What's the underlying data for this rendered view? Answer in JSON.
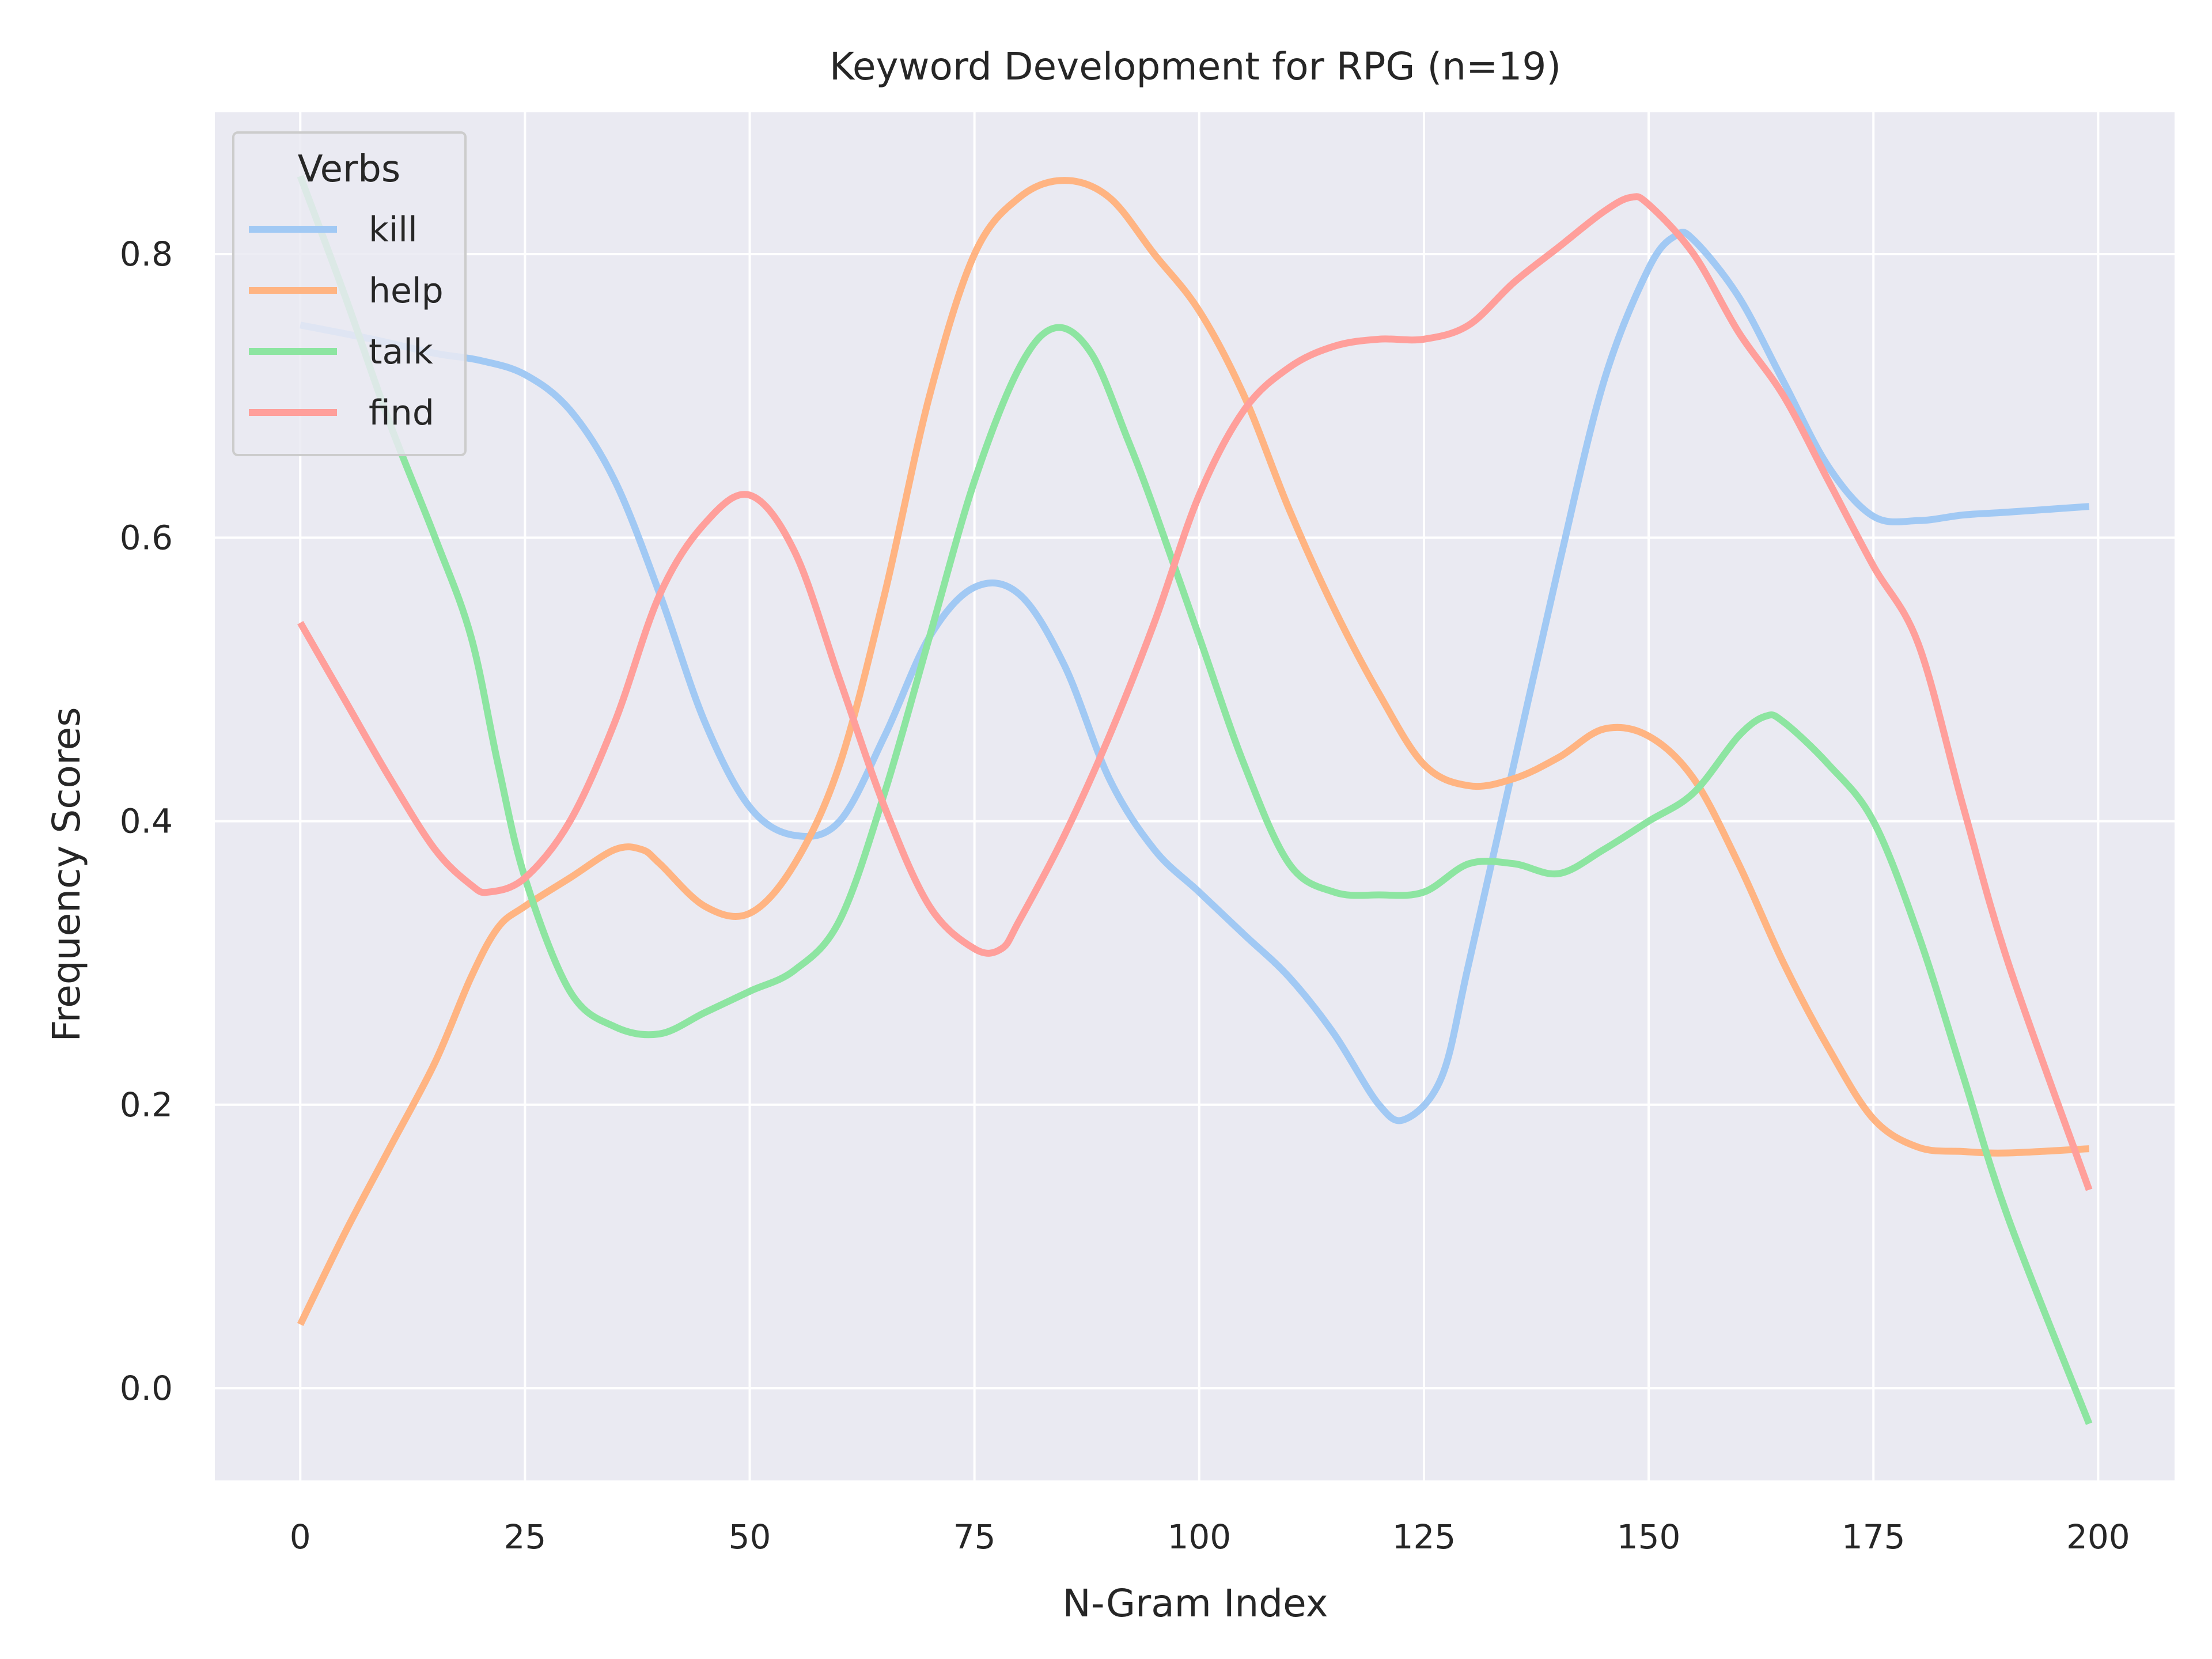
{
  "chart_data": {
    "type": "line",
    "title": "Keyword Development for RPG (n=19)",
    "xlabel": "N-Gram Index",
    "ylabel": "Frequency Scores",
    "xlim": [
      -9.5,
      208.5
    ],
    "ylim": [
      -0.065,
      0.9
    ],
    "xticks": [
      0,
      25,
      50,
      75,
      100,
      125,
      150,
      175,
      200
    ],
    "yticks": [
      0.0,
      0.2,
      0.4,
      0.6,
      0.8
    ],
    "xtick_labels": [
      "0",
      "25",
      "50",
      "75",
      "100",
      "125",
      "150",
      "175",
      "200"
    ],
    "ytick_labels": [
      "0.0",
      "0.2",
      "0.4",
      "0.6",
      "0.8"
    ],
    "grid": true,
    "legend": {
      "title": "Verbs",
      "placement": "top-left"
    },
    "series": [
      {
        "name": "kill",
        "color": "#a1c9f4",
        "x": [
          0,
          8,
          15,
          20,
          25,
          30,
          35,
          40,
          45,
          50,
          55,
          60,
          65,
          70,
          75,
          80,
          85,
          90,
          95,
          100,
          105,
          110,
          115,
          120,
          123,
          127,
          130,
          135,
          140,
          145,
          150,
          153,
          155,
          160,
          165,
          170,
          175,
          180,
          185,
          190,
          199
        ],
        "y": [
          0.75,
          0.74,
          0.73,
          0.725,
          0.715,
          0.69,
          0.64,
          0.56,
          0.47,
          0.41,
          0.39,
          0.4,
          0.46,
          0.53,
          0.565,
          0.56,
          0.51,
          0.43,
          0.38,
          0.35,
          0.32,
          0.29,
          0.25,
          0.2,
          0.19,
          0.22,
          0.3,
          0.44,
          0.58,
          0.71,
          0.79,
          0.813,
          0.81,
          0.77,
          0.71,
          0.65,
          0.615,
          0.612,
          0.616,
          0.618,
          0.622
        ]
      },
      {
        "name": "help",
        "color": "#ffb482",
        "x": [
          0,
          5,
          10,
          15,
          19,
          22,
          25,
          30,
          35,
          38,
          40,
          45,
          50,
          55,
          60,
          65,
          70,
          75,
          80,
          85,
          90,
          95,
          100,
          105,
          110,
          115,
          120,
          125,
          130,
          135,
          140,
          145,
          150,
          155,
          160,
          165,
          170,
          175,
          180,
          185,
          190,
          199
        ],
        "y": [
          0.045,
          0.11,
          0.17,
          0.23,
          0.29,
          0.325,
          0.34,
          0.36,
          0.38,
          0.38,
          0.37,
          0.34,
          0.335,
          0.37,
          0.44,
          0.56,
          0.7,
          0.8,
          0.84,
          0.852,
          0.84,
          0.8,
          0.76,
          0.7,
          0.62,
          0.55,
          0.49,
          0.44,
          0.425,
          0.43,
          0.445,
          0.465,
          0.46,
          0.43,
          0.37,
          0.3,
          0.24,
          0.19,
          0.17,
          0.167,
          0.166,
          0.169
        ]
      },
      {
        "name": "talk",
        "color": "#8de5a1",
        "x": [
          0,
          5,
          10,
          15,
          19,
          22,
          25,
          30,
          35,
          40,
          45,
          50,
          55,
          60,
          65,
          70,
          75,
          80,
          84,
          88,
          92,
          95,
          100,
          105,
          110,
          115,
          120,
          125,
          130,
          135,
          140,
          145,
          150,
          155,
          160,
          163,
          165,
          170,
          175,
          180,
          185,
          190,
          199
        ],
        "y": [
          0.855,
          0.77,
          0.68,
          0.6,
          0.53,
          0.44,
          0.36,
          0.28,
          0.255,
          0.25,
          0.265,
          0.28,
          0.295,
          0.33,
          0.42,
          0.53,
          0.64,
          0.72,
          0.748,
          0.73,
          0.67,
          0.62,
          0.53,
          0.44,
          0.37,
          0.35,
          0.348,
          0.35,
          0.37,
          0.37,
          0.363,
          0.38,
          0.4,
          0.42,
          0.46,
          0.474,
          0.47,
          0.44,
          0.4,
          0.32,
          0.22,
          0.12,
          -0.025
        ]
      },
      {
        "name": "find",
        "color": "#ff9f9b",
        "x": [
          0,
          5,
          10,
          15,
          19,
          21,
          25,
          30,
          35,
          40,
          45,
          50,
          55,
          60,
          65,
          70,
          75,
          78,
          80,
          85,
          90,
          95,
          100,
          105,
          110,
          115,
          120,
          125,
          130,
          135,
          140,
          145,
          148,
          150,
          155,
          160,
          165,
          170,
          175,
          180,
          185,
          190,
          199
        ],
        "y": [
          0.54,
          0.485,
          0.43,
          0.38,
          0.355,
          0.35,
          0.36,
          0.4,
          0.47,
          0.56,
          0.61,
          0.63,
          0.59,
          0.5,
          0.41,
          0.34,
          0.31,
          0.31,
          0.33,
          0.39,
          0.46,
          0.54,
          0.63,
          0.69,
          0.72,
          0.735,
          0.74,
          0.74,
          0.75,
          0.78,
          0.805,
          0.83,
          0.84,
          0.835,
          0.8,
          0.745,
          0.7,
          0.64,
          0.58,
          0.525,
          0.41,
          0.3,
          0.14
        ]
      }
    ]
  }
}
